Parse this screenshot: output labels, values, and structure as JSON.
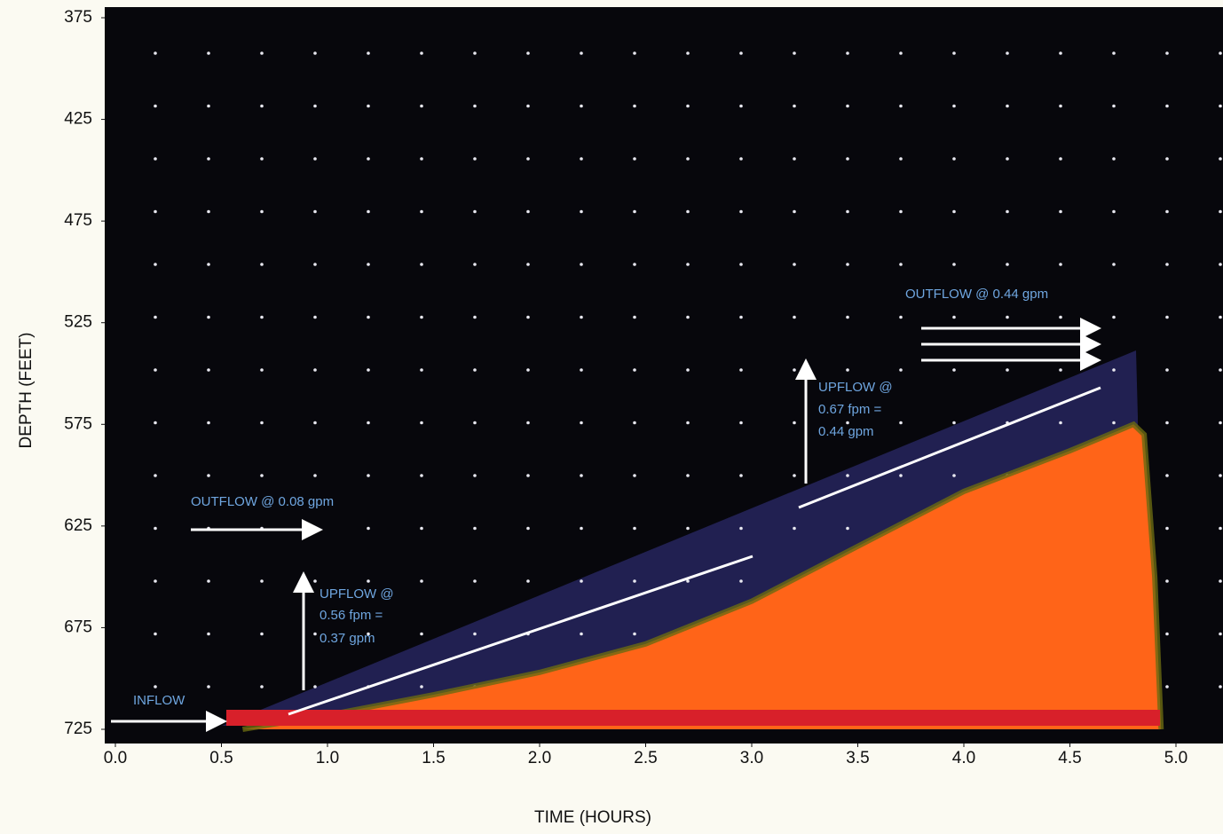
{
  "chart_data": {
    "type": "area",
    "xlabel": "TIME (HOURS)",
    "ylabel": "DEPTH (FEET)",
    "x": [
      0.6,
      1.0,
      1.5,
      2.0,
      2.5,
      3.0,
      3.5,
      4.0,
      4.5,
      4.8,
      4.85,
      4.9,
      4.93
    ],
    "series": [
      {
        "color": "#ff6418",
        "values": [
          725,
          718,
          708,
          697,
          683,
          662,
          635,
          608,
          588,
          575,
          580,
          650,
          725
        ]
      }
    ],
    "xlim": [
      0.0,
      5.0
    ],
    "xticks": [
      {
        "value": 0,
        "label": "0.0"
      },
      0.5,
      {
        "value": 1,
        "label": "1.0"
      },
      1.5,
      {
        "value": 2,
        "label": "2.0"
      },
      2.5,
      {
        "value": 3,
        "label": "3.0"
      },
      3.5,
      {
        "value": 4,
        "label": "4.0"
      },
      4.5,
      {
        "value": 5,
        "label": "5.0"
      }
    ],
    "ylim": [
      375,
      725
    ],
    "y_inverted": true,
    "yticks": [
      375,
      425,
      475,
      525,
      575,
      625,
      675,
      725
    ],
    "annotations": [
      "INFLOW",
      "OUTFLOW @ 0.08 gpm",
      "UPFLOW @",
      "0.56 fpm =",
      "0.37 gpm",
      "UPFLOW @",
      "0.67 fpm =",
      "0.44 gpm",
      "OUTFLOW @ 0.44 gpm"
    ]
  }
}
